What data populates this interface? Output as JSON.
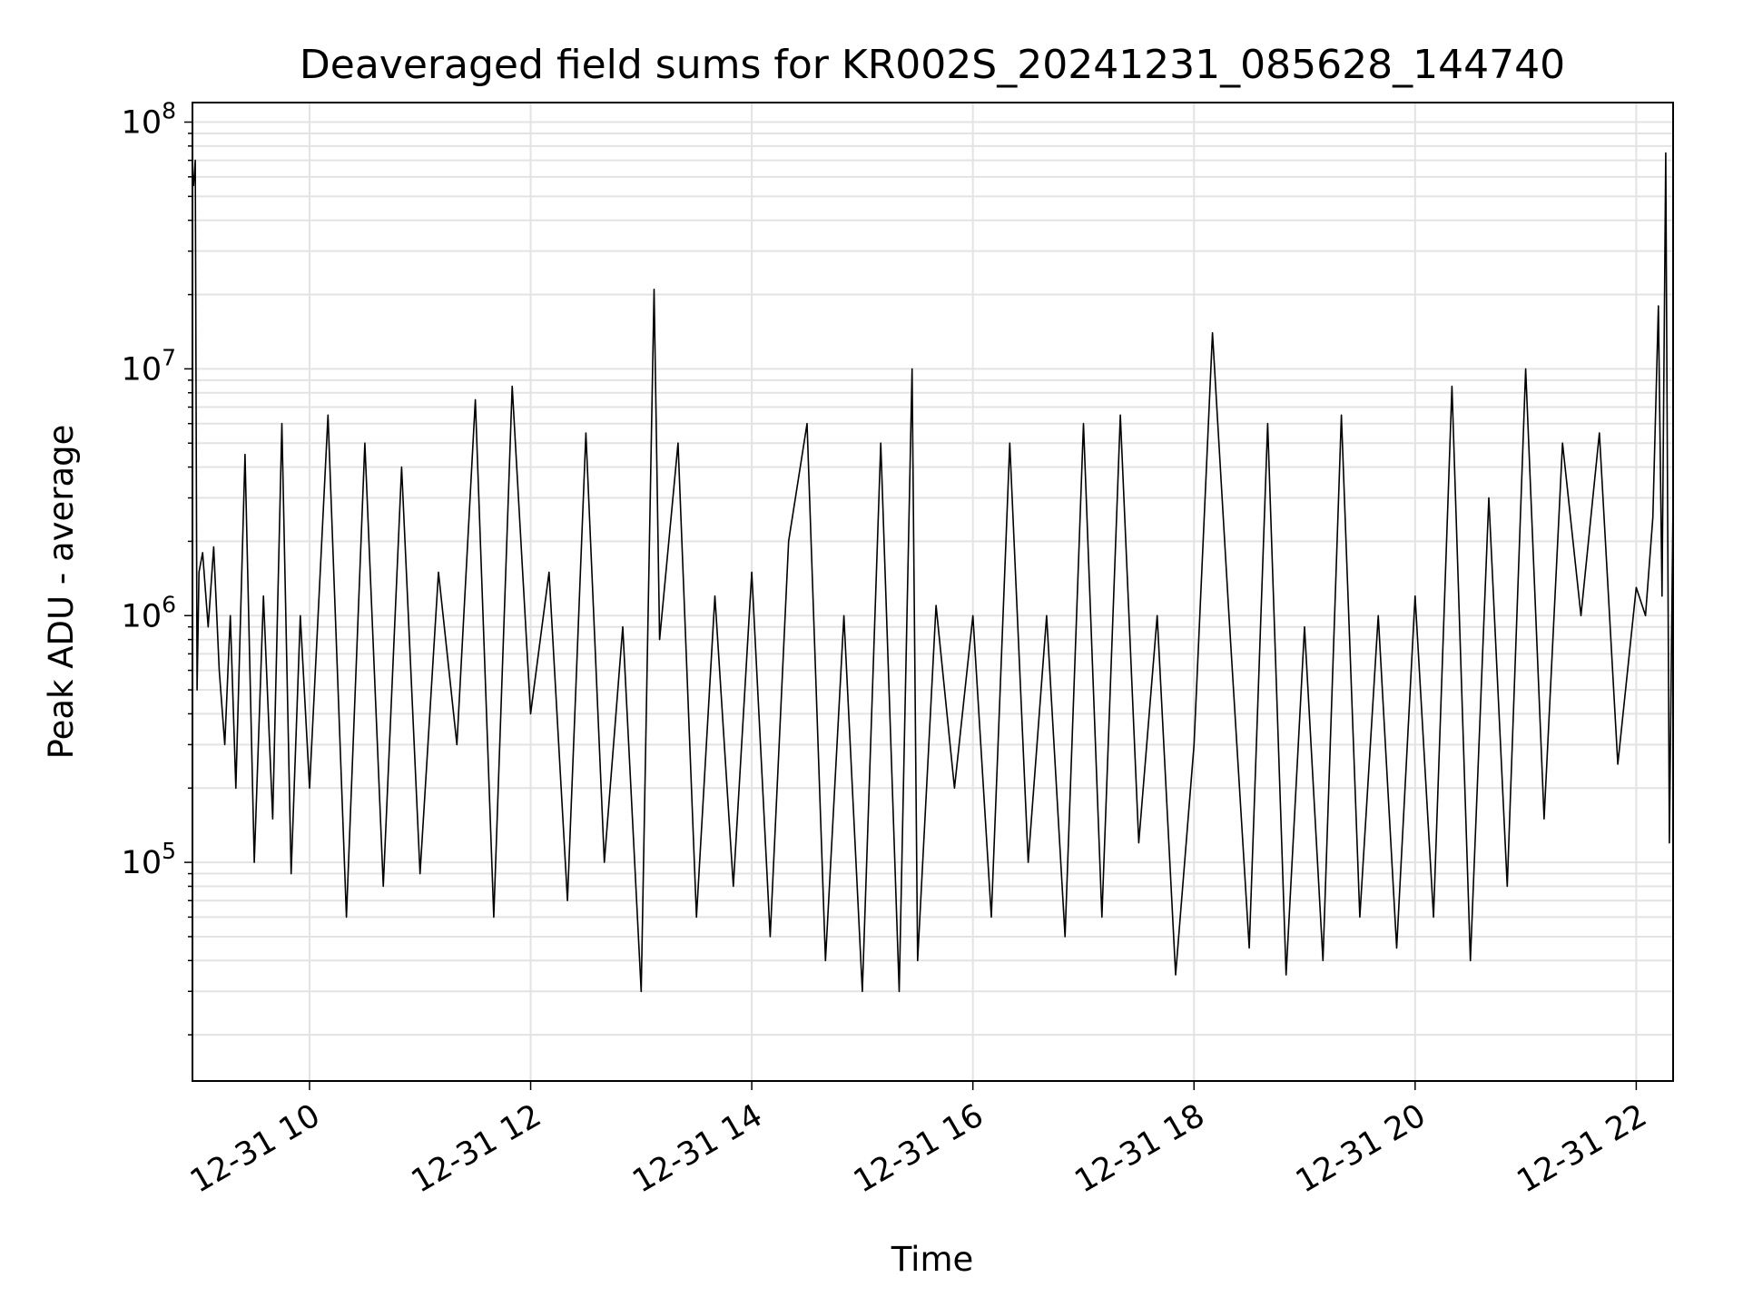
{
  "chart_data": {
    "type": "line",
    "title": "Deaveraged field sums for KR002S_20241231_085628_144740",
    "xlabel": "Time",
    "ylabel": "Peak ADU - average",
    "yscale": "log",
    "ylim": [
      13000,
      120000000
    ],
    "xlim": [
      "2024-12-31T08:56:28",
      "2024-12-31T22:20:00"
    ],
    "grid": true,
    "line_color": "#000000",
    "x_ticks": [
      "12-31 10",
      "12-31 12",
      "12-31 14",
      "12-31 16",
      "12-31 18",
      "12-31 20",
      "12-31 22"
    ],
    "y_ticks": [
      {
        "base": "10",
        "exp": "5",
        "value": 100000
      },
      {
        "base": "10",
        "exp": "6",
        "value": 1000000
      },
      {
        "base": "10",
        "exp": "7",
        "value": 10000000
      },
      {
        "base": "10",
        "exp": "8",
        "value": 100000000
      }
    ],
    "series": [
      {
        "x": [
          "2024-12-31T08:57:00",
          "2024-12-31T08:58:00",
          "2024-12-31T08:59:00",
          "2024-12-31T09:00:00",
          "2024-12-31T09:02:00",
          "2024-12-31T09:05:00",
          "2024-12-31T09:08:00",
          "2024-12-31T09:11:00",
          "2024-12-31T09:14:00",
          "2024-12-31T09:17:00",
          "2024-12-31T09:20:00",
          "2024-12-31T09:25:00",
          "2024-12-31T09:30:00",
          "2024-12-31T09:35:00",
          "2024-12-31T09:40:00",
          "2024-12-31T09:45:00",
          "2024-12-31T09:50:00",
          "2024-12-31T09:55:00",
          "2024-12-31T10:00:00",
          "2024-12-31T10:10:00",
          "2024-12-31T10:20:00",
          "2024-12-31T10:30:00",
          "2024-12-31T10:40:00",
          "2024-12-31T10:50:00",
          "2024-12-31T11:00:00",
          "2024-12-31T11:10:00",
          "2024-12-31T11:20:00",
          "2024-12-31T11:30:00",
          "2024-12-31T11:40:00",
          "2024-12-31T11:50:00",
          "2024-12-31T12:00:00",
          "2024-12-31T12:10:00",
          "2024-12-31T12:20:00",
          "2024-12-31T12:30:00",
          "2024-12-31T12:40:00",
          "2024-12-31T12:50:00",
          "2024-12-31T13:00:00",
          "2024-12-31T13:07:00",
          "2024-12-31T13:10:00",
          "2024-12-31T13:20:00",
          "2024-12-31T13:30:00",
          "2024-12-31T13:40:00",
          "2024-12-31T13:50:00",
          "2024-12-31T14:00:00",
          "2024-12-31T14:10:00",
          "2024-12-31T14:20:00",
          "2024-12-31T14:30:00",
          "2024-12-31T14:40:00",
          "2024-12-31T14:50:00",
          "2024-12-31T15:00:00",
          "2024-12-31T15:10:00",
          "2024-12-31T15:20:00",
          "2024-12-31T15:27:00",
          "2024-12-31T15:30:00",
          "2024-12-31T15:40:00",
          "2024-12-31T15:50:00",
          "2024-12-31T16:00:00",
          "2024-12-31T16:10:00",
          "2024-12-31T16:20:00",
          "2024-12-31T16:30:00",
          "2024-12-31T16:40:00",
          "2024-12-31T16:50:00",
          "2024-12-31T17:00:00",
          "2024-12-31T17:10:00",
          "2024-12-31T17:20:00",
          "2024-12-31T17:30:00",
          "2024-12-31T17:40:00",
          "2024-12-31T17:50:00",
          "2024-12-31T18:00:00",
          "2024-12-31T18:10:00",
          "2024-12-31T18:19:00",
          "2024-12-31T18:30:00",
          "2024-12-31T18:40:00",
          "2024-12-31T18:50:00",
          "2024-12-31T19:00:00",
          "2024-12-31T19:10:00",
          "2024-12-31T19:20:00",
          "2024-12-31T19:30:00",
          "2024-12-31T19:40:00",
          "2024-12-31T19:50:00",
          "2024-12-31T20:00:00",
          "2024-12-31T20:10:00",
          "2024-12-31T20:20:00",
          "2024-12-31T20:30:00",
          "2024-12-31T20:40:00",
          "2024-12-31T20:50:00",
          "2024-12-31T21:00:00",
          "2024-12-31T21:10:00",
          "2024-12-31T21:20:00",
          "2024-12-31T21:30:00",
          "2024-12-31T21:40:00",
          "2024-12-31T21:50:00",
          "2024-12-31T22:00:00",
          "2024-12-31T22:05:00",
          "2024-12-31T22:09:00",
          "2024-12-31T22:12:00",
          "2024-12-31T22:14:00",
          "2024-12-31T22:16:00",
          "2024-12-31T22:18:00",
          "2024-12-31T22:20:00"
        ],
        "y": [
          55000000,
          70000000,
          500000,
          1500000,
          1800000,
          900000,
          1900000,
          600000,
          300000,
          1000000,
          200000,
          4500000,
          100000,
          1200000,
          150000,
          6000000,
          90000,
          1000000,
          200000,
          6500000,
          60000,
          5000000,
          80000,
          4000000,
          90000,
          1500000,
          300000,
          7500000,
          60000,
          8500000,
          400000,
          1500000,
          70000,
          5500000,
          100000,
          900000,
          30000,
          21000000,
          800000,
          5000000,
          60000,
          1200000,
          80000,
          1500000,
          50000,
          2000000,
          6000000,
          40000,
          1000000,
          30000,
          5000000,
          30000,
          10000000,
          40000,
          1100000,
          200000,
          1000000,
          60000,
          5000000,
          100000,
          1000000,
          50000,
          6000000,
          60000,
          6500000,
          120000,
          1000000,
          35000,
          300000,
          14000000,
          1000000,
          45000,
          6000000,
          35000,
          900000,
          40000,
          6500000,
          60000,
          1000000,
          45000,
          1200000,
          60000,
          8500000,
          40000,
          3000000,
          80000,
          10000000,
          150000,
          5000000,
          1000000,
          5500000,
          250000,
          1300000,
          1000000,
          2500000,
          18000000,
          1200000,
          75000000,
          120000,
          3000000
        ]
      }
    ]
  }
}
